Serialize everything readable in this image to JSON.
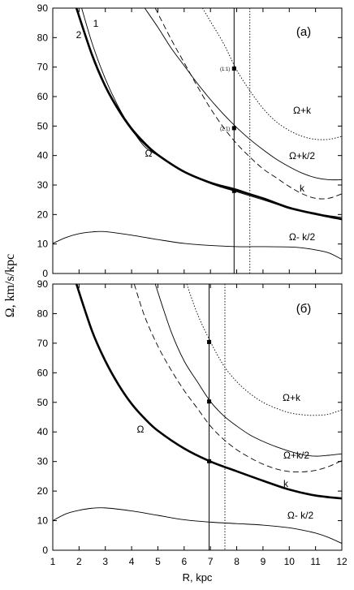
{
  "y_axis_title": "Ω, km/s/kpc",
  "chart_data": [
    {
      "type": "line",
      "panel_label": "(а)",
      "xlim": [
        1,
        12
      ],
      "ylim": [
        0,
        90
      ],
      "x_ticks": [
        "1",
        "2",
        "3",
        "4",
        "5",
        "6",
        "7",
        "8",
        "9",
        "10",
        "11",
        "12"
      ],
      "y_ticks": [
        "0",
        "10",
        "20",
        "30",
        "40",
        "50",
        "60",
        "70",
        "80",
        "90"
      ],
      "vertical_lines": [
        {
          "x": 7.9,
          "style": "solid"
        },
        {
          "x": 8.5,
          "style": "dotted"
        }
      ],
      "markers": [
        {
          "x": 7.9,
          "y": 69.5,
          "label": "(1:1)"
        },
        {
          "x": 7.9,
          "y": 49.3,
          "label": "(2:1)"
        },
        {
          "x": 7.9,
          "y": 28.0,
          "label": ""
        }
      ],
      "series": [
        {
          "label": "Ω",
          "style": "thick",
          "x": [
            1.9,
            2.5,
            3,
            3.5,
            4,
            4.5,
            5,
            6,
            7,
            8,
            9,
            10,
            11,
            12
          ],
          "y": [
            90,
            74,
            63.5,
            55.5,
            49,
            44,
            40.2,
            34.5,
            30.8,
            28.2,
            25.5,
            22.3,
            20.2,
            18.4
          ]
        },
        {
          "label": "1",
          "style": "thin",
          "x": [
            2.1,
            2.5,
            3,
            3.5,
            4,
            4.5,
            5,
            6,
            7,
            8,
            9,
            10,
            11,
            12
          ],
          "y": [
            90,
            78,
            66,
            56.5,
            49,
            43,
            40,
            34.7,
            31,
            28.6,
            25.4,
            22,
            20.5,
            18.2
          ]
        },
        {
          "label": "2",
          "style": "thin",
          "x": [
            1.9,
            2.5,
            3,
            3.5,
            4,
            4.5,
            5,
            6,
            7,
            8,
            9,
            10,
            11,
            12
          ],
          "y": [
            90,
            74.5,
            64,
            56,
            49.5,
            44.5,
            40.5,
            34.4,
            30.5,
            27.7,
            25,
            22.2,
            20.3,
            19
          ]
        },
        {
          "label": "Ω+k",
          "style": "dotted",
          "x": [
            6.7,
            7,
            7.5,
            8,
            8.5,
            9,
            9.5,
            10,
            10.5,
            11,
            11.5,
            12
          ],
          "y": [
            90,
            85.5,
            78,
            69,
            62,
            56,
            51.5,
            48.5,
            46.5,
            45.5,
            45.5,
            46.5
          ]
        },
        {
          "label": "Ω+k/2",
          "style": "thin",
          "x": [
            4.5,
            5,
            5.5,
            6,
            6.5,
            7,
            7.5,
            8,
            8.5,
            9,
            9.5,
            10,
            10.5,
            11,
            11.5,
            12
          ],
          "y": [
            90,
            83.5,
            76.5,
            70.5,
            64.5,
            59,
            54,
            49.5,
            45.5,
            42,
            38.8,
            36.2,
            34,
            32.5,
            31.8,
            31.8
          ]
        },
        {
          "label": "k",
          "style": "dashed",
          "x": [
            4.9,
            5.5,
            6,
            6.5,
            7,
            7.5,
            8,
            8.5,
            9,
            9.5,
            10,
            10.5,
            11,
            11.5,
            12
          ],
          "y": [
            90,
            79.5,
            71.5,
            63.5,
            56,
            49.5,
            44,
            39.5,
            35.5,
            32.5,
            29.5,
            27,
            25.5,
            25.5,
            27
          ]
        },
        {
          "label": "Ω- k/2",
          "style": "thin",
          "x": [
            1,
            1.5,
            2,
            2.5,
            3,
            4,
            5,
            6,
            7,
            8,
            9,
            10,
            10.5,
            11,
            11.5,
            12
          ],
          "y": [
            10.2,
            12.2,
            13.5,
            14.1,
            14.2,
            13,
            11.5,
            10.2,
            9.5,
            9.1,
            9.1,
            9,
            8.7,
            8,
            7,
            4.8
          ]
        }
      ]
    },
    {
      "type": "line",
      "panel_label": "(б)",
      "xlabel": "R, kpc",
      "xlim": [
        1,
        12
      ],
      "ylim": [
        0,
        90
      ],
      "x_ticks": [
        "1",
        "2",
        "3",
        "4",
        "5",
        "6",
        "7",
        "8",
        "9",
        "10",
        "11",
        "12"
      ],
      "y_ticks": [
        "0",
        "10",
        "20",
        "30",
        "40",
        "50",
        "60",
        "70",
        "80",
        "90"
      ],
      "vertical_lines": [
        {
          "x": 6.95,
          "style": "solid"
        },
        {
          "x": 7.55,
          "style": "dotted"
        }
      ],
      "markers": [
        {
          "x": 6.95,
          "y": 70.4,
          "label": ""
        },
        {
          "x": 6.95,
          "y": 50.3,
          "label": ""
        },
        {
          "x": 6.95,
          "y": 30.1,
          "label": ""
        }
      ],
      "series": [
        {
          "label": "Ω",
          "style": "thick",
          "x": [
            1.9,
            2.5,
            3,
            3.5,
            4,
            4.5,
            5,
            6,
            7,
            8,
            9,
            10,
            11,
            12
          ],
          "y": [
            90,
            74,
            64,
            56,
            49.5,
            44.5,
            40.4,
            34.4,
            30,
            26.7,
            23.5,
            20.5,
            18.5,
            17.5
          ]
        },
        {
          "label": "Ω+k",
          "style": "dotted",
          "x": [
            6.1,
            6.5,
            7,
            7.5,
            8,
            8.5,
            9,
            9.5,
            10,
            10.5,
            11,
            11.5,
            12
          ],
          "y": [
            90,
            80,
            70.5,
            62.5,
            57,
            53,
            50,
            48,
            46.5,
            45.8,
            45.6,
            46,
            47.5
          ]
        },
        {
          "label": "Ω+k/2",
          "style": "thin",
          "x": [
            4.9,
            5.5,
            6,
            6.5,
            7,
            7.5,
            8,
            8.5,
            9,
            9.5,
            10,
            10.5,
            11,
            11.5,
            12
          ],
          "y": [
            90,
            74,
            64,
            57,
            50.3,
            45.5,
            42,
            39,
            36.8,
            35,
            33.5,
            32.3,
            31.8,
            32.1,
            32.6
          ]
        },
        {
          "label": "k",
          "style": "dashed",
          "x": [
            4.1,
            4.5,
            5,
            5.5,
            6,
            6.5,
            7,
            7.5,
            8,
            8.5,
            9,
            9.5,
            10,
            10.5,
            11,
            11.5,
            12
          ],
          "y": [
            90,
            79,
            69,
            61,
            54,
            48,
            42,
            37.5,
            34,
            31.3,
            29.1,
            27.5,
            26.6,
            26.5,
            27,
            28.3,
            30.3
          ]
        },
        {
          "label": "Ω- k/2",
          "style": "thin",
          "x": [
            1,
            1.5,
            2,
            2.5,
            3,
            4,
            5,
            6,
            7,
            8,
            9,
            10,
            10.5,
            11,
            11.5,
            12
          ],
          "y": [
            10,
            12.3,
            13.5,
            14.2,
            14.3,
            13.3,
            11.8,
            10.3,
            9.5,
            9,
            8.5,
            7.6,
            6.8,
            5.8,
            4.3,
            2.3
          ]
        }
      ]
    }
  ]
}
